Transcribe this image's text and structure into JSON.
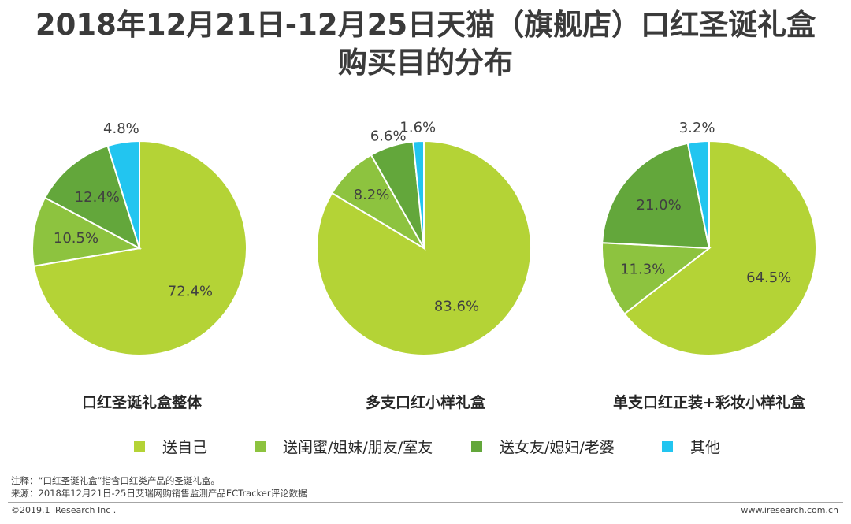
{
  "title": {
    "line1": "2018年12月21日-12月25日天猫（旗舰店）口红圣诞礼盒",
    "line2": "购买目的分布"
  },
  "colors": {
    "self": "#b4d336",
    "bestie": "#8dc33f",
    "partner": "#63a73b",
    "other": "#22c5f0",
    "edge": "#ffffff"
  },
  "chart_data": [
    {
      "type": "pie",
      "title": "口红圣诞礼盒整体",
      "labels": [
        "送自己",
        "送闺蜜/姐妹/朋友/室友",
        "送女友/媳妇/老婆",
        "其他"
      ],
      "values": [
        72.4,
        10.5,
        12.4,
        4.8
      ],
      "value_labels": [
        "72.4%",
        "10.5%",
        "12.4%",
        "4.8%"
      ]
    },
    {
      "type": "pie",
      "title": "多支口红小样礼盒",
      "labels": [
        "送自己",
        "送闺蜜/姐妹/朋友/室友",
        "送女友/媳妇/老婆",
        "其他"
      ],
      "values": [
        83.6,
        8.2,
        6.6,
        1.6
      ],
      "value_labels": [
        "83.6%",
        "8.2%",
        "6.6%",
        "1.6%"
      ]
    },
    {
      "type": "pie",
      "title": "单支口红正装+彩妆小样礼盒",
      "labels": [
        "送自己",
        "送闺蜜/姐妹/朋友/室友",
        "送女友/媳妇/老婆",
        "其他"
      ],
      "values": [
        64.5,
        11.3,
        21.0,
        3.2
      ],
      "value_labels": [
        "64.5%",
        "11.3%",
        "21.0%",
        "3.2%"
      ]
    }
  ],
  "legend": [
    "送自己",
    "送闺蜜/姐妹/朋友/室友",
    "送女友/媳妇/老婆",
    "其他"
  ],
  "notes": {
    "note": "注释：“口红圣诞礼盒”指含口红类产品的圣诞礼盒。",
    "source": "来源：2018年12月21日-25日艾瑞网购销售监测产品ECTracker评论数据"
  },
  "footer": {
    "copyright": "©2019.1 iResearch Inc .",
    "website": "www.iresearch.com.cn"
  }
}
